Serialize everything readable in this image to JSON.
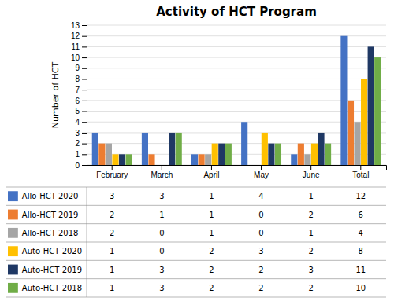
{
  "chart_data": {
    "type": "bar",
    "title": "Activity of HCT Program",
    "ylabel": "Number of HCT",
    "categories": [
      "February",
      "March",
      "April",
      "May",
      "June",
      "Total"
    ],
    "series": [
      {
        "name": "Allo-HCT 2020",
        "color": "#4472C4",
        "values": [
          3,
          3,
          1,
          4,
          1,
          12
        ]
      },
      {
        "name": "Allo-HCT 2019",
        "color": "#ED7D31",
        "values": [
          2,
          1,
          1,
          0,
          2,
          6
        ]
      },
      {
        "name": "Allo-HCT 2018",
        "color": "#A5A5A5",
        "values": [
          2,
          0,
          1,
          0,
          1,
          4
        ]
      },
      {
        "name": "Auto-HCT 2020",
        "color": "#FFC000",
        "values": [
          1,
          0,
          2,
          3,
          2,
          8
        ]
      },
      {
        "name": "Auto-HCT 2019",
        "color": "#1F3864",
        "values": [
          1,
          3,
          2,
          2,
          3,
          11
        ]
      },
      {
        "name": "Auto-HCT 2018",
        "color": "#70AD47",
        "values": [
          1,
          3,
          2,
          2,
          2,
          10
        ]
      }
    ],
    "ylim": [
      0,
      13
    ],
    "yticks": [
      0,
      1,
      2,
      3,
      4,
      5,
      6,
      7,
      8,
      9,
      10,
      11,
      12,
      13
    ],
    "grid": true,
    "legend": "bottom"
  }
}
